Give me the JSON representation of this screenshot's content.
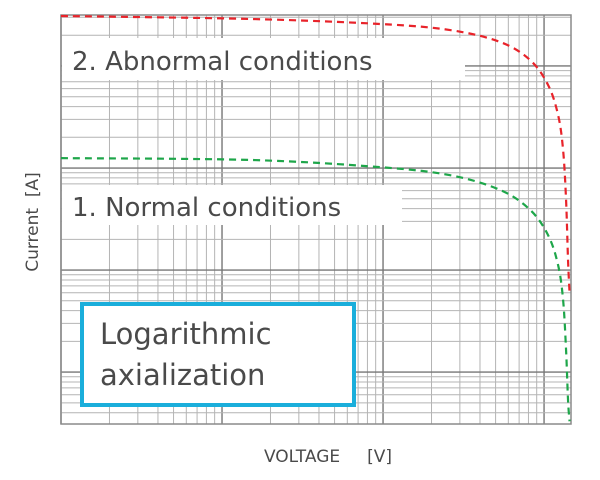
{
  "chart_data": {
    "type": "line",
    "title": "",
    "xlabel": "VOLTAGE     [V]",
    "ylabel": "Current  [A]",
    "xscale": "log",
    "yscale": "log",
    "xlim": [
      1,
      1470
    ],
    "ylim": [
      0.31,
      3160
    ],
    "grid": true,
    "annotation": "Logarithmic axialization",
    "annotation_color": "#1aaedb",
    "series": [
      {
        "name": "2. Abnormal conditions",
        "color": "#e8232a",
        "style": "dashed",
        "x": [
          1,
          14.9,
          95.8,
          261,
          533,
          818,
          1059,
          1222,
          1313,
          1370,
          1409,
          1440
        ],
        "y": [
          3090,
          2890,
          2580,
          2250,
          1720,
          1145,
          651,
          331,
          150,
          48.6,
          12.5,
          6
        ]
      },
      {
        "name": "1. Normal conditions",
        "color": "#1ea64a",
        "style": "dashed",
        "x": [
          1,
          14.9,
          95.8,
          261,
          533,
          818,
          1059,
          1222,
          1313,
          1370,
          1409,
          1440
        ],
        "y": [
          125,
          120,
          102,
          85,
          61,
          39,
          22,
          11.2,
          5.1,
          1.64,
          0.53,
          0.33
        ]
      }
    ]
  }
}
